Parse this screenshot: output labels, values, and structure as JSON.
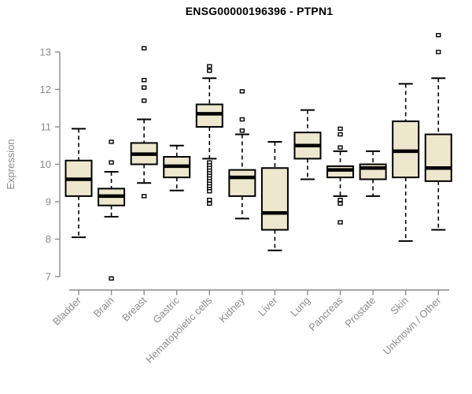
{
  "chart_data": {
    "type": "boxplot",
    "title": "ENSG00000196396 - PTPN1",
    "ylabel": "Expression",
    "xlabel": "",
    "ylim": [
      7,
      13
    ],
    "yticks": [
      7,
      8,
      9,
      10,
      11,
      12,
      13
    ],
    "grid": false,
    "legend": null,
    "categories": [
      "Bladder",
      "Brain",
      "Breast",
      "Gastric",
      "Hematopoietic cells",
      "Kidney",
      "Liver",
      "Lung",
      "Pancreas",
      "Prostate",
      "Skin",
      "Unknown / Other"
    ],
    "series": [
      {
        "name": "Bladder",
        "low": 8.05,
        "q1": 9.15,
        "median": 9.6,
        "q3": 10.1,
        "high": 10.95,
        "outliers": []
      },
      {
        "name": "Brain",
        "low": 8.6,
        "q1": 8.9,
        "median": 9.15,
        "q3": 9.35,
        "high": 9.8,
        "outliers": [
          10.6,
          10.05,
          6.95
        ]
      },
      {
        "name": "Breast",
        "low": 9.5,
        "q1": 10.0,
        "median": 10.27,
        "q3": 10.57,
        "high": 11.2,
        "outliers": [
          13.1,
          12.25,
          12.05,
          11.7,
          9.15
        ]
      },
      {
        "name": "Gastric",
        "low": 9.3,
        "q1": 9.65,
        "median": 9.95,
        "q3": 10.2,
        "high": 10.5,
        "outliers": []
      },
      {
        "name": "Hematopoietic cells",
        "low": 10.15,
        "q1": 11.0,
        "median": 11.35,
        "q3": 11.6,
        "high": 12.3,
        "outliers": [
          12.62,
          12.5,
          10.05,
          9.97,
          9.9,
          9.83,
          9.76,
          9.69,
          9.62,
          9.55,
          9.48,
          9.41,
          9.34,
          9.28,
          9.05,
          8.95
        ]
      },
      {
        "name": "Kidney",
        "low": 8.55,
        "q1": 9.15,
        "median": 9.65,
        "q3": 9.85,
        "high": 10.8,
        "outliers": [
          11.95,
          11.2,
          10.9
        ]
      },
      {
        "name": "Liver",
        "low": 7.7,
        "q1": 8.25,
        "median": 8.7,
        "q3": 9.9,
        "high": 10.6,
        "outliers": []
      },
      {
        "name": "Lung",
        "low": 9.6,
        "q1": 10.15,
        "median": 10.5,
        "q3": 10.85,
        "high": 11.45,
        "outliers": []
      },
      {
        "name": "Pancreas",
        "low": 9.15,
        "q1": 9.65,
        "median": 9.85,
        "q3": 9.95,
        "high": 10.35,
        "outliers": [
          10.95,
          10.8,
          10.45,
          9.05,
          8.95,
          8.45
        ]
      },
      {
        "name": "Prostate",
        "low": 9.15,
        "q1": 9.6,
        "median": 9.9,
        "q3": 10.0,
        "high": 10.35,
        "outliers": []
      },
      {
        "name": "Skin",
        "low": 7.95,
        "q1": 9.65,
        "median": 10.35,
        "q3": 11.15,
        "high": 12.15,
        "outliers": []
      },
      {
        "name": "Unknown / Other",
        "low": 8.25,
        "q1": 9.55,
        "median": 9.9,
        "q3": 10.8,
        "high": 12.3,
        "outliers": [
          13.45,
          13.0
        ]
      }
    ],
    "colors": {
      "box_fill": "#EDE7CE",
      "box_border": "#000000",
      "median": "#000000",
      "whisker": "#000000",
      "outlier_fill": "#FFFFFF",
      "outlier_border": "#000000",
      "axis_line": "#8C8C8C",
      "axis_text": "#8C8C8C",
      "title": "#000000",
      "background": "#FFFFFF"
    }
  }
}
